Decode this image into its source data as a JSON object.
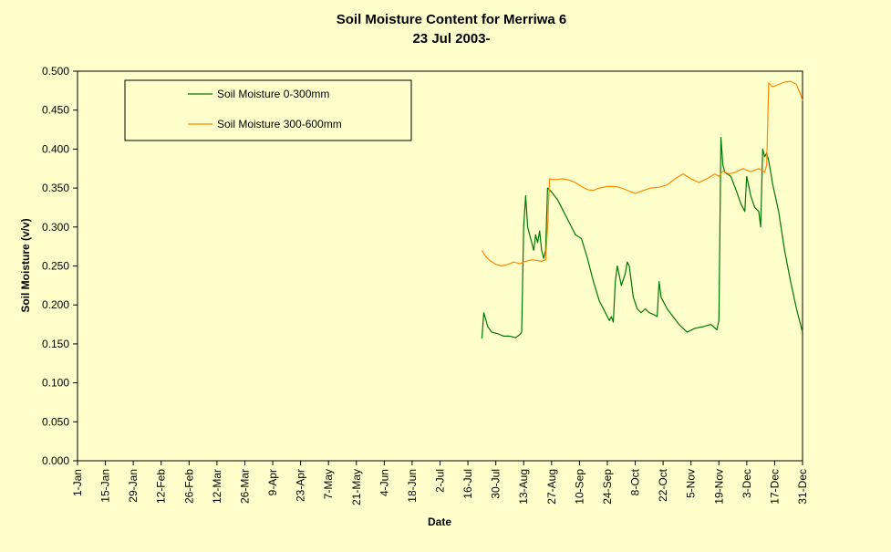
{
  "chart_data": {
    "type": "line",
    "title": "Soil Moisture Content for Merriwa 6",
    "subtitle": "23 Jul 2003-",
    "xlabel": "Date",
    "ylabel": "Soil Moisture (v/v)",
    "ylim": [
      0,
      0.5
    ],
    "y_ticks": [
      "0.000",
      "0.050",
      "0.100",
      "0.150",
      "0.200",
      "0.250",
      "0.300",
      "0.350",
      "0.400",
      "0.450",
      "0.500"
    ],
    "x_ticks": [
      "1-Jan",
      "15-Jan",
      "29-Jan",
      "12-Feb",
      "26-Feb",
      "12-Mar",
      "26-Mar",
      "9-Apr",
      "23-Apr",
      "7-May",
      "21-May",
      "4-Jun",
      "18-Jun",
      "2-Jul",
      "16-Jul",
      "30-Jul",
      "13-Aug",
      "27-Aug",
      "10-Sep",
      "24-Sep",
      "8-Oct",
      "22-Oct",
      "5-Nov",
      "19-Nov",
      "3-Dec",
      "17-Dec",
      "31-Dec"
    ],
    "legend_position": "top-left",
    "grid": false,
    "colors": {
      "background": "#ffffcc",
      "plot": "#ffffcc"
    },
    "series": [
      {
        "name": "Soil Moisture 0-300mm",
        "color": "#007700",
        "x": [
          "23-Jul",
          "24-Jul",
          "26-Jul",
          "28-Jul",
          "31-Jul",
          "3-Aug",
          "6-Aug",
          "9-Aug",
          "11-Aug",
          "12-Aug",
          "13-Aug",
          "14-Aug",
          "15-Aug",
          "16-Aug",
          "17-Aug",
          "18-Aug",
          "19-Aug",
          "20-Aug",
          "21-Aug",
          "22-Aug",
          "23-Aug",
          "24-Aug",
          "25-Aug",
          "27-Aug",
          "30-Aug",
          "2-Sep",
          "5-Sep",
          "8-Sep",
          "11-Sep",
          "14-Sep",
          "17-Sep",
          "20-Sep",
          "23-Sep",
          "25-Sep",
          "26-Sep",
          "27-Sep",
          "28-Sep",
          "29-Sep",
          "1-Oct",
          "3-Oct",
          "4-Oct",
          "5-Oct",
          "7-Oct",
          "9-Oct",
          "11-Oct",
          "13-Oct",
          "15-Oct",
          "17-Oct",
          "19-Oct",
          "20-Oct",
          "21-Oct",
          "24-Oct",
          "27-Oct",
          "30-Oct",
          "3-Nov",
          "7-Nov",
          "11-Nov",
          "15-Nov",
          "18-Nov",
          "19-Nov",
          "20-Nov",
          "21-Nov",
          "22-Nov",
          "25-Nov",
          "28-Nov",
          "30-Nov",
          "2-Dec",
          "3-Dec",
          "5-Dec",
          "7-Dec",
          "9-Dec",
          "10-Dec",
          "11-Dec",
          "12-Dec",
          "13-Dec",
          "14-Dec",
          "15-Dec",
          "16-Dec",
          "19-Dec",
          "22-Dec",
          "25-Dec",
          "28-Dec",
          "30-Dec",
          "31-Dec"
        ],
        "values": [
          0.157,
          0.19,
          0.172,
          0.165,
          0.163,
          0.16,
          0.16,
          0.158,
          0.162,
          0.165,
          0.3,
          0.34,
          0.3,
          0.29,
          0.28,
          0.27,
          0.29,
          0.28,
          0.295,
          0.27,
          0.26,
          0.27,
          0.35,
          0.345,
          0.335,
          0.32,
          0.305,
          0.29,
          0.285,
          0.26,
          0.23,
          0.205,
          0.19,
          0.18,
          0.185,
          0.178,
          0.23,
          0.25,
          0.225,
          0.24,
          0.255,
          0.25,
          0.21,
          0.195,
          0.19,
          0.195,
          0.19,
          0.188,
          0.185,
          0.23,
          0.21,
          0.195,
          0.185,
          0.175,
          0.165,
          0.17,
          0.172,
          0.175,
          0.168,
          0.18,
          0.415,
          0.38,
          0.37,
          0.365,
          0.345,
          0.33,
          0.32,
          0.365,
          0.34,
          0.325,
          0.32,
          0.3,
          0.4,
          0.39,
          0.395,
          0.385,
          0.37,
          0.355,
          0.32,
          0.27,
          0.23,
          0.195,
          0.175,
          0.165
        ]
      },
      {
        "name": "Soil Moisture 300-600mm",
        "color": "#ff8800",
        "x": [
          "23-Jul",
          "25-Jul",
          "27-Jul",
          "30-Jul",
          "2-Aug",
          "5-Aug",
          "8-Aug",
          "11-Aug",
          "14-Aug",
          "17-Aug",
          "20-Aug",
          "22-Aug",
          "24-Aug",
          "25-Aug",
          "26-Aug",
          "27-Aug",
          "30-Aug",
          "2-Sep",
          "5-Sep",
          "8-Sep",
          "11-Sep",
          "14-Sep",
          "17-Sep",
          "20-Sep",
          "24-Sep",
          "28-Sep",
          "1-Oct",
          "5-Oct",
          "8-Oct",
          "12-Oct",
          "16-Oct",
          "20-Oct",
          "24-Oct",
          "28-Oct",
          "1-Nov",
          "5-Nov",
          "9-Nov",
          "13-Nov",
          "17-Nov",
          "19-Nov",
          "21-Nov",
          "24-Nov",
          "27-Nov",
          "1-Dec",
          "5-Dec",
          "9-Dec",
          "11-Dec",
          "12-Dec",
          "13-Dec",
          "14-Dec",
          "16-Dec",
          "19-Dec",
          "22-Dec",
          "25-Dec",
          "28-Dec",
          "30-Dec",
          "31-Dec"
        ],
        "values": [
          0.27,
          0.262,
          0.257,
          0.252,
          0.25,
          0.252,
          0.255,
          0.253,
          0.256,
          0.258,
          0.257,
          0.256,
          0.258,
          0.3,
          0.362,
          0.361,
          0.361,
          0.362,
          0.36,
          0.357,
          0.352,
          0.348,
          0.347,
          0.35,
          0.352,
          0.352,
          0.35,
          0.346,
          0.343,
          0.347,
          0.35,
          0.351,
          0.354,
          0.362,
          0.368,
          0.362,
          0.357,
          0.362,
          0.368,
          0.365,
          0.372,
          0.368,
          0.37,
          0.375,
          0.371,
          0.375,
          0.372,
          0.37,
          0.38,
          0.485,
          0.48,
          0.483,
          0.486,
          0.487,
          0.483,
          0.47,
          0.462
        ]
      }
    ]
  }
}
